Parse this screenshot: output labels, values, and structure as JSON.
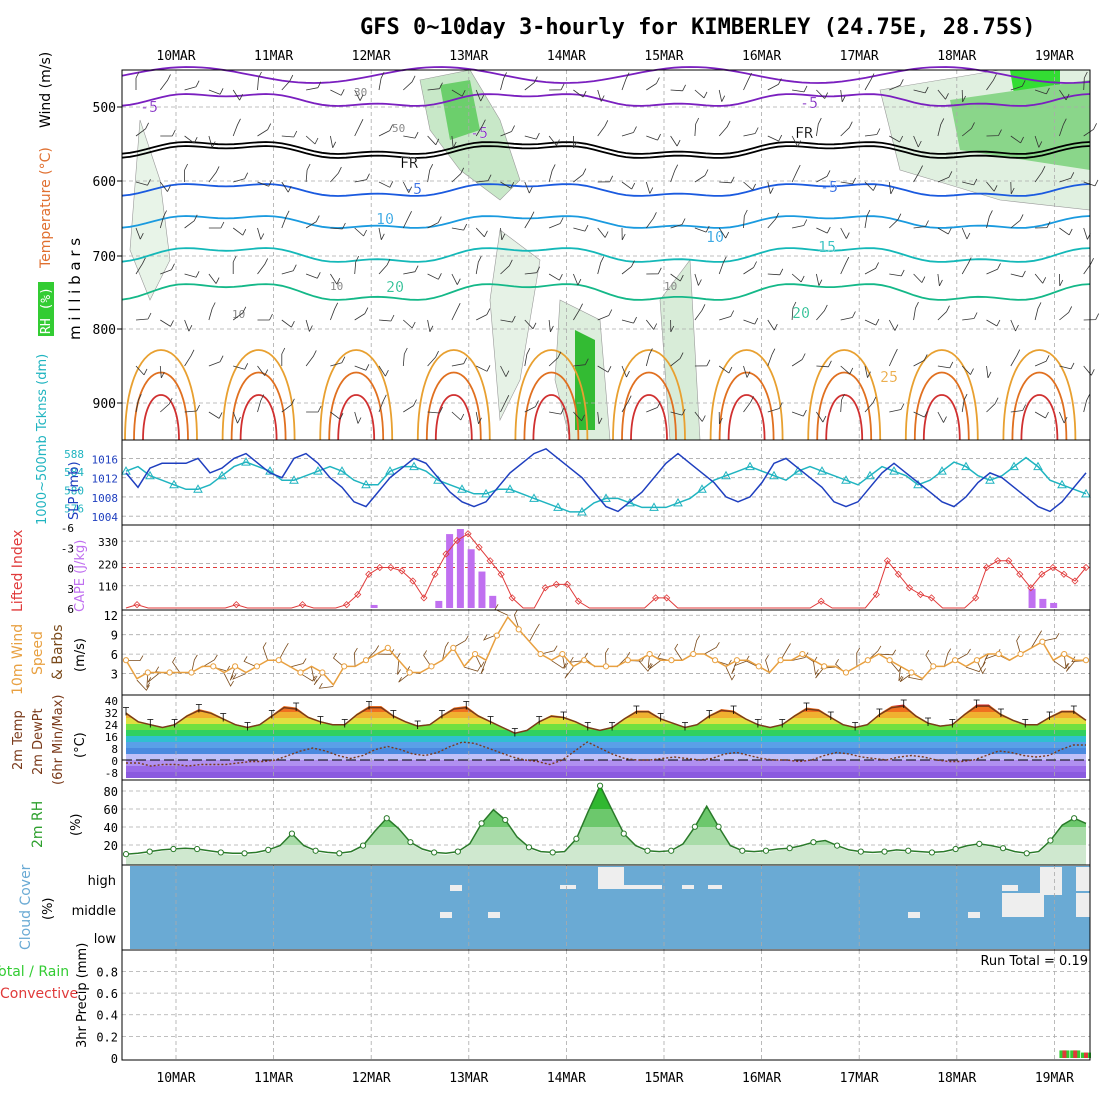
{
  "title": "GFS 0~10day 3-hourly for KIMBERLEY (24.75E, 28.75S)",
  "dates": [
    "10MAR",
    "11MAR",
    "12MAR",
    "13MAR",
    "14MAR",
    "15MAR",
    "16MAR",
    "17MAR",
    "18MAR",
    "19MAR"
  ],
  "colors": {
    "grid": "#aaaaaa",
    "slp": "#1f3fbf",
    "thk": "#20b4c0",
    "li": "#e03a3a",
    "cape": "#c070f0",
    "wind": "#e8a040",
    "barb": "#7a4a1a",
    "rh": "#2ea02e",
    "cloud": "#6aaad4",
    "rain_total": "#33cc33",
    "rain_conv": "#e03a3a"
  },
  "panels": {
    "upper": {
      "ylabel_parts": [
        "RH (%)",
        "Temperature (°C)",
        "Wind (m/s)"
      ],
      "ylabel_mb": "m i l l i b a r s",
      "levels": [
        "500",
        "600",
        "700",
        "800",
        "900"
      ],
      "temp_labels": [
        "-5",
        "-5",
        "-5",
        "FR",
        "FR",
        "-5",
        "-5",
        "10",
        "10",
        "15",
        "20",
        "20",
        "25"
      ],
      "rh_labels": [
        "30",
        "50",
        "10",
        "10",
        "10"
      ]
    },
    "pressure": {
      "ylabel_slp": "SLP (mb)",
      "ylabel_thk": "1000~500mb Tcknss (dm)",
      "ticks_left": [
        "1016",
        "1012",
        "1008",
        "1004"
      ],
      "ticks_right": [
        "588",
        "584",
        "580",
        "576"
      ]
    },
    "cape": {
      "ylabel_li": "Lifted Index",
      "ylabel_cape": "CAPE (J/kg)",
      "ticks_li": [
        "-6",
        "-3",
        "0",
        "3",
        "6"
      ],
      "ticks_cape": [
        "330",
        "220",
        "110"
      ]
    },
    "wind10": {
      "ylabel": "10m Wind",
      "ylabel2": "Speed",
      "ylabel3": "& Barbs",
      "unit": "(m/s)",
      "ticks": [
        "12",
        "9",
        "6",
        "3"
      ]
    },
    "temp2m": {
      "ylabel": "2m Temp",
      "ylabel2": "2m DewPt",
      "ylabel3": "(6hr Min/Max)",
      "unit": "(°C)",
      "ticks": [
        "40",
        "32",
        "24",
        "16",
        "8",
        "0",
        "-8"
      ]
    },
    "rh2m": {
      "ylabel": "2m RH",
      "unit": "(%)",
      "ticks": [
        "80",
        "60",
        "40",
        "20"
      ]
    },
    "cloud": {
      "ylabel": "Cloud Cover",
      "unit": "(%)",
      "ticks": [
        "high",
        "middle",
        "low"
      ]
    },
    "precip": {
      "ylabel_total": "Total / Rain",
      "ylabel_conv": "Convective",
      "ylabel": "3hr Precip (mm)",
      "ticks": [
        "0.8",
        "0.6",
        "0.4",
        "0.2",
        "0"
      ],
      "run_total": "Run Total = 0.19"
    }
  },
  "chart_data": [
    {
      "type": "line",
      "name": "slp",
      "ylim": [
        1003,
        1019
      ],
      "values": [
        1013,
        1010,
        1014,
        1015,
        1015,
        1015,
        1016,
        1013,
        1014,
        1016,
        1017,
        1015,
        1013,
        1012,
        1016,
        1017,
        1015,
        1012,
        1010,
        1007,
        1006,
        1009,
        1012,
        1014,
        1016,
        1015,
        1012,
        1009,
        1007,
        1006,
        1007,
        1010,
        1013,
        1015,
        1017,
        1018,
        1016,
        1014,
        1012,
        1009,
        1006,
        1005,
        1007,
        1009,
        1012,
        1015,
        1017,
        1015,
        1013,
        1011,
        1008,
        1007,
        1008,
        1011,
        1015,
        1016,
        1014,
        1012,
        1010,
        1007,
        1006,
        1007,
        1010,
        1013,
        1015,
        1013,
        1011,
        1009,
        1007,
        1006,
        1008,
        1011,
        1013,
        1012,
        1010,
        1008,
        1006,
        1005,
        1007,
        1010,
        1013
      ]
    },
    {
      "type": "line",
      "name": "thickness",
      "ylim": [
        573,
        590
      ],
      "values": [
        584,
        585,
        583,
        582,
        581,
        580,
        580,
        581,
        583,
        585,
        586,
        585,
        584,
        582,
        582,
        583,
        584,
        585,
        584,
        582,
        581,
        581,
        584,
        585,
        585,
        584,
        582,
        581,
        580,
        579,
        579,
        580,
        580,
        579,
        578,
        577,
        576,
        575,
        575,
        577,
        578,
        578,
        577,
        576,
        576,
        576,
        577,
        578,
        580,
        582,
        583,
        584,
        585,
        584,
        583,
        582,
        584,
        585,
        584,
        583,
        582,
        581,
        583,
        585,
        584,
        583,
        581,
        582,
        584,
        586,
        585,
        583,
        582,
        583,
        585,
        587,
        585,
        582,
        581,
        580,
        579
      ]
    },
    {
      "type": "bar",
      "name": "cape",
      "ylim": [
        0,
        400
      ],
      "values": [
        0,
        0,
        0,
        0,
        0,
        0,
        0,
        0,
        0,
        0,
        0,
        0,
        0,
        0,
        0,
        0,
        0,
        0,
        0,
        0,
        0,
        0,
        0,
        15,
        0,
        0,
        0,
        0,
        0,
        35,
        365,
        390,
        290,
        180,
        60,
        0,
        0,
        0,
        0,
        0,
        0,
        0,
        0,
        0,
        0,
        0,
        0,
        0,
        0,
        0,
        0,
        0,
        0,
        0,
        0,
        0,
        0,
        0,
        0,
        0,
        0,
        0,
        0,
        0,
        0,
        0,
        0,
        0,
        0,
        0,
        0,
        0,
        0,
        0,
        0,
        0,
        0,
        0,
        0,
        0,
        0,
        0,
        0,
        0,
        95,
        45,
        25,
        0,
        0,
        0
      ]
    },
    {
      "type": "line",
      "name": "lifted_index",
      "ylim": [
        -6,
        6
      ],
      "values": [
        6,
        5.5,
        6,
        6,
        6,
        6,
        6,
        6,
        6,
        6,
        5.5,
        6,
        6,
        6,
        6,
        6,
        5.5,
        6,
        6,
        6,
        5.5,
        4,
        1,
        0,
        0,
        0.5,
        2,
        4.5,
        1,
        -2,
        -4,
        -5,
        -3,
        -1,
        1,
        4.5,
        6,
        6,
        3,
        2.5,
        2.5,
        5,
        6,
        6,
        6,
        6,
        6,
        6,
        4.5,
        4.5,
        6,
        6,
        6,
        6,
        6,
        6,
        6,
        6,
        6,
        6,
        6,
        6,
        6,
        5,
        6,
        6,
        6,
        6,
        4,
        -1,
        1,
        3,
        4,
        4.5,
        6,
        6,
        6,
        4.5,
        0,
        -1,
        -1,
        1,
        3,
        1,
        0,
        1,
        2,
        0
      ]
    },
    {
      "type": "line",
      "name": "wind_speed_10m",
      "ylim": [
        0,
        12.5
      ],
      "values": [
        5,
        2,
        3,
        3,
        3,
        3,
        3,
        4,
        4,
        3,
        4,
        3,
        4,
        5,
        5,
        4,
        3,
        4,
        3,
        1,
        4,
        4,
        5,
        6,
        7,
        5,
        3,
        3,
        4,
        5,
        7,
        4,
        6,
        5,
        9,
        12,
        10,
        8,
        6,
        5,
        6,
        4,
        5,
        4,
        4,
        4,
        5,
        5,
        6,
        5,
        5,
        5,
        6,
        6,
        5,
        4,
        5,
        5,
        4,
        3,
        5,
        5,
        6,
        5,
        4,
        4,
        3,
        4,
        5,
        6,
        5,
        4,
        3,
        2,
        4,
        4,
        5,
        4,
        5,
        6,
        6,
        5,
        6,
        7,
        8,
        5,
        6,
        5,
        5
      ]
    },
    {
      "type": "area",
      "name": "temp_2m",
      "ylim": [
        -12,
        42
      ],
      "values": [
        32,
        26,
        24,
        22,
        24,
        30,
        34,
        32,
        28,
        24,
        22,
        24,
        30,
        36,
        35,
        29,
        26,
        24,
        24,
        31,
        36,
        36,
        30,
        26,
        23,
        24,
        30,
        35,
        36,
        30,
        26,
        22,
        18,
        20,
        26,
        30,
        29,
        26,
        22,
        20,
        22,
        28,
        33,
        33,
        28,
        25,
        22,
        24,
        30,
        34,
        33,
        28,
        24,
        22,
        24,
        30,
        35,
        34,
        29,
        24,
        22,
        24,
        31,
        36,
        37,
        30,
        25,
        23,
        24,
        31,
        37,
        37,
        31,
        27,
        24,
        24,
        29,
        33,
        33,
        27
      ]
    },
    {
      "type": "line",
      "name": "dewpoint_2m",
      "ylim": [
        -12,
        42
      ],
      "values": [
        -2,
        -2,
        -4,
        -3,
        -3,
        -4,
        -3,
        -3,
        -3,
        -2,
        -1,
        -1,
        0,
        3,
        6,
        8,
        6,
        3,
        1,
        3,
        7,
        9,
        7,
        4,
        3,
        5,
        9,
        12,
        11,
        8,
        5,
        2,
        0,
        -1,
        -3,
        0,
        6,
        12,
        8,
        4,
        1,
        0,
        0,
        1,
        2,
        1,
        0,
        1,
        4,
        5,
        3,
        1,
        0,
        0,
        -1,
        0,
        3,
        5,
        4,
        2,
        1,
        0,
        2,
        3,
        2,
        0,
        -1,
        -1,
        0,
        3,
        6,
        5,
        3,
        2,
        3,
        7,
        10,
        10
      ]
    },
    {
      "type": "area",
      "name": "rh_2m",
      "ylim": [
        0,
        90
      ],
      "values": [
        8,
        9,
        11,
        13,
        14,
        15,
        14,
        12,
        10,
        9,
        9,
        10,
        13,
        18,
        32,
        18,
        12,
        10,
        9,
        11,
        18,
        35,
        50,
        38,
        22,
        14,
        10,
        9,
        11,
        20,
        44,
        60,
        48,
        28,
        16,
        11,
        10,
        11,
        26,
        58,
        88,
        60,
        32,
        18,
        12,
        11,
        12,
        20,
        40,
        64,
        40,
        18,
        12,
        11,
        12,
        14,
        15,
        18,
        22,
        24,
        18,
        13,
        11,
        10,
        11,
        13,
        12,
        11,
        10,
        11,
        14,
        18,
        20,
        18,
        15,
        11,
        9,
        11,
        24,
        42,
        50,
        44
      ]
    },
    {
      "type": "bar",
      "name": "precip_3hr",
      "ylim": [
        0,
        0.98
      ],
      "values": [
        0,
        0,
        0,
        0,
        0,
        0,
        0,
        0,
        0,
        0,
        0,
        0,
        0,
        0,
        0,
        0,
        0,
        0,
        0,
        0,
        0,
        0,
        0,
        0,
        0,
        0,
        0,
        0,
        0,
        0,
        0,
        0,
        0,
        0,
        0,
        0,
        0,
        0,
        0,
        0,
        0,
        0,
        0,
        0,
        0,
        0,
        0,
        0,
        0,
        0,
        0,
        0,
        0,
        0,
        0,
        0,
        0,
        0,
        0,
        0,
        0,
        0,
        0,
        0,
        0,
        0,
        0,
        0,
        0,
        0,
        0,
        0,
        0,
        0,
        0,
        0,
        0,
        0,
        0,
        0,
        0,
        0,
        0,
        0,
        0,
        0,
        0,
        0.07,
        0.07,
        0.05
      ]
    }
  ]
}
